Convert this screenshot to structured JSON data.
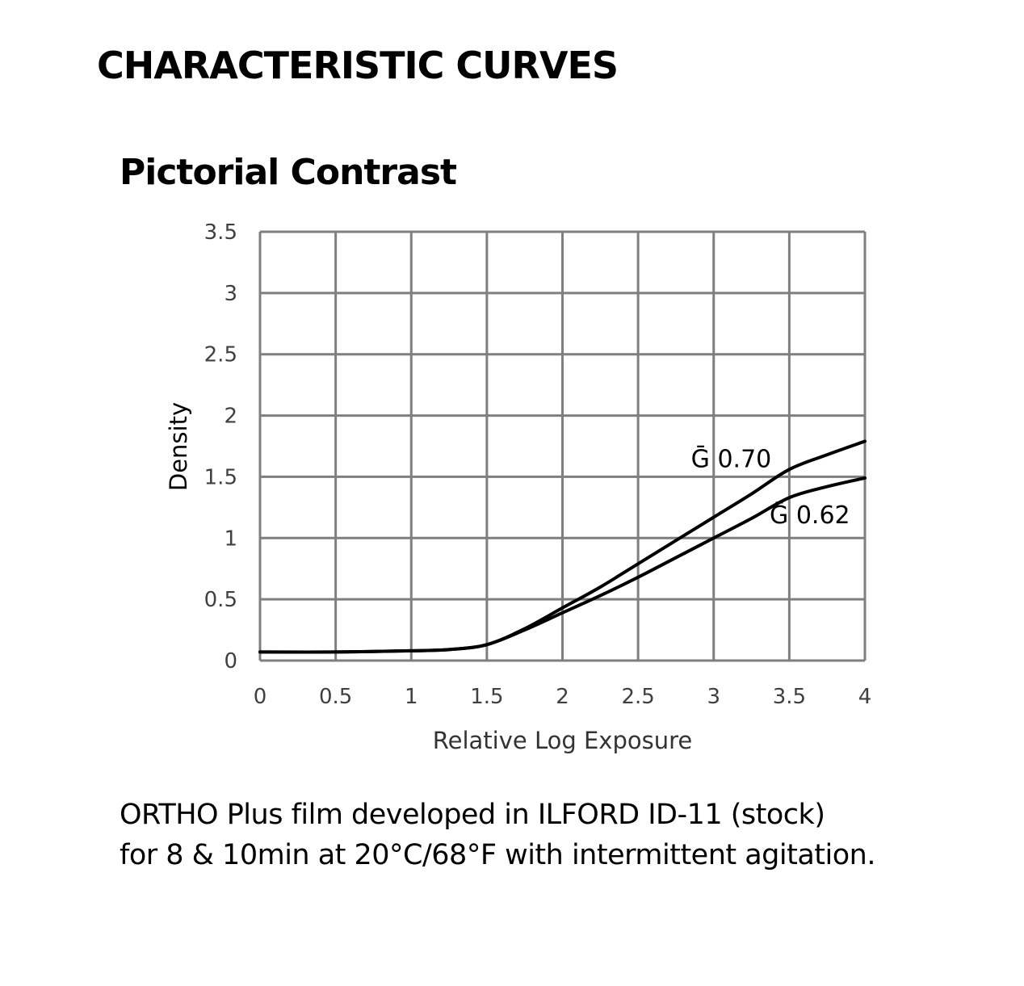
{
  "page": {
    "section_title": "CHARACTERISTIC CURVES",
    "caption": {
      "line1": "ORTHO Plus film developed in ILFORD ID-11 (stock)",
      "line2": "for 8 & 10min at 20°C/68°F with intermittent agitation."
    }
  },
  "chart_data": {
    "type": "line",
    "title": "Pictorial Contrast",
    "xlabel": "Relative Log Exposure",
    "ylabel": "Density",
    "xlim": [
      0,
      4
    ],
    "ylim": [
      0,
      3.5
    ],
    "x_ticks": [
      "0",
      "0.5",
      "1",
      "1.5",
      "2",
      "2.5",
      "3",
      "3.5",
      "4"
    ],
    "y_ticks": [
      "0",
      "0.5",
      "1",
      "1.5",
      "2",
      "2.5",
      "3",
      "3.5"
    ],
    "grid": true,
    "legend": "none",
    "series": [
      {
        "name": "Ḡ 0.70",
        "x": [
          0,
          0.5,
          1.0,
          1.25,
          1.5,
          1.75,
          2.0,
          2.25,
          2.5,
          2.75,
          3.0,
          3.25,
          3.5,
          3.75,
          4.0
        ],
        "y": [
          0.07,
          0.07,
          0.08,
          0.09,
          0.13,
          0.26,
          0.43,
          0.6,
          0.79,
          0.98,
          1.17,
          1.36,
          1.56,
          1.68,
          1.79
        ]
      },
      {
        "name": "Ḡ 0.62",
        "x": [
          0,
          0.5,
          1.0,
          1.25,
          1.5,
          1.75,
          2.0,
          2.25,
          2.5,
          2.75,
          3.0,
          3.25,
          3.5,
          3.75,
          4.0
        ],
        "y": [
          0.07,
          0.07,
          0.08,
          0.09,
          0.13,
          0.25,
          0.39,
          0.53,
          0.68,
          0.84,
          1.0,
          1.16,
          1.33,
          1.42,
          1.49
        ]
      }
    ],
    "annotations": [
      {
        "text": "Ḡ 0.70",
        "x": 2.85,
        "y": 1.58
      },
      {
        "text": "Ḡ 0.62",
        "x": 3.37,
        "y": 1.12
      }
    ],
    "colors": {
      "line": "#000000",
      "grid": "#7f7f7f",
      "tick_text": "#404040"
    }
  }
}
